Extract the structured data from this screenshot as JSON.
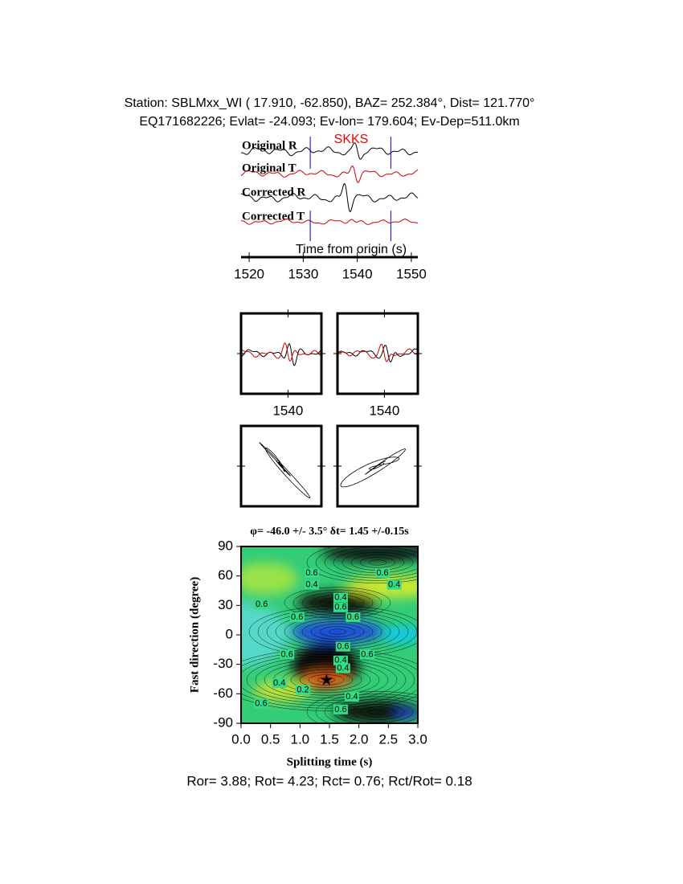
{
  "header": {
    "line1": "Station: SBLMxx_WI (  17.910,  -62.850), BAZ=  252.384°, Dist=  121.770°",
    "line2": "EQ171682226; Evlat= -24.093; Ev-lon= 179.604; Ev-Dep=511.0km"
  },
  "chart_data": [
    {
      "type": "waveform",
      "traces": [
        "Original R",
        "Original T",
        "Corrected R",
        "Corrected T"
      ],
      "phase": "SKKS",
      "xlabel": "Time from origin (s)",
      "xlim": [
        1518.5,
        1551.2
      ],
      "xticks": [
        1520,
        1530,
        1540,
        1550
      ],
      "window": [
        1531.3,
        1546.2
      ]
    },
    {
      "type": "waveform_pair",
      "xlim": [
        1531.3,
        1546.2
      ],
      "xticks": [
        1540
      ]
    },
    {
      "type": "waveform_pair",
      "xlim": [
        1531.3,
        1546.2
      ],
      "xticks": [
        1540
      ]
    },
    {
      "type": "contour",
      "title": "φ= -46.0 +/- 3.5° δt= 1.45 +/-0.15s",
      "xlabel": "Splitting time (s)",
      "ylabel": "Fast direction (degree)",
      "xlim": [
        0,
        3
      ],
      "xticks": [
        {
          "value": 0,
          "label": "0.0"
        },
        {
          "value": 0.5,
          "label": "0.5"
        },
        {
          "value": 1,
          "label": "1.0"
        },
        {
          "value": 1.5,
          "label": "1.5"
        },
        {
          "value": 2,
          "label": "2.0"
        },
        {
          "value": 2.5,
          "label": "2.5"
        },
        {
          "value": 3,
          "label": "3.0"
        }
      ],
      "ylim": [
        -90,
        90
      ],
      "yticks": [
        -90,
        -60,
        -30,
        0,
        30,
        60,
        90
      ],
      "best": [
        1.45,
        -46.0
      ],
      "contour_labels": [
        "0.6",
        "0.4",
        "0.6",
        "0.4",
        "0.6",
        "0.4",
        "0.6",
        "0.6",
        "0.6",
        "0.6",
        "0.6",
        "0.6",
        "0.4",
        "0.4",
        "0.4",
        "0.2",
        "0.4",
        "0.6",
        "0.6"
      ]
    }
  ],
  "footer": "Ror= 3.88; Rot= 4.23; Rct= 0.76; Rct/Rot= 0.18"
}
